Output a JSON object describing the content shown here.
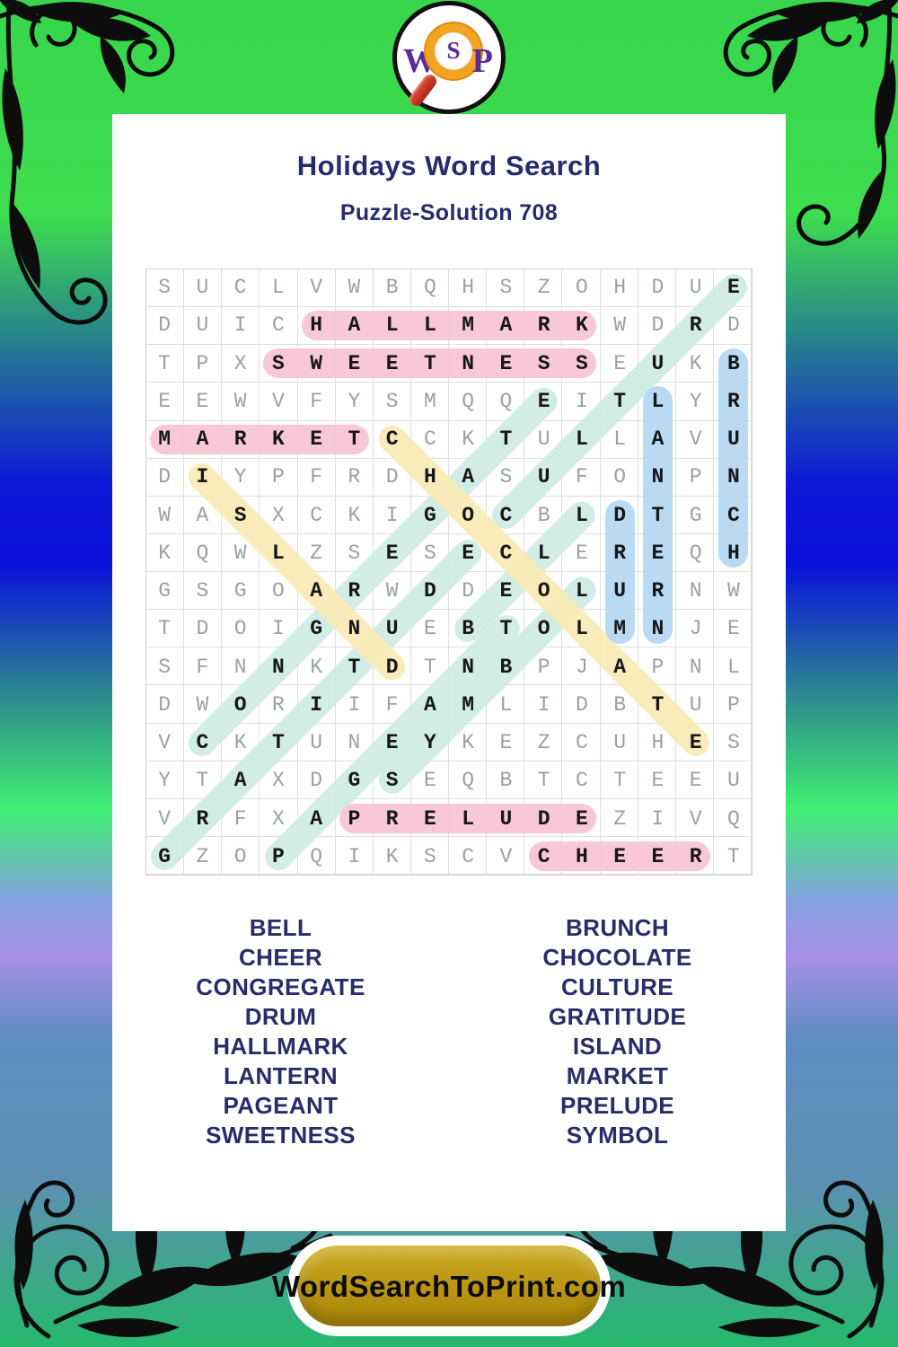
{
  "logo": {
    "left_letter": "W",
    "lens_letter": "S",
    "right_letter": "P"
  },
  "header": {
    "title": "Holidays Word Search",
    "subtitle": "Puzzle-Solution 708"
  },
  "grid": {
    "rows": [
      "SUCLVWBQHSZOHDUE",
      "DUICHALLMARKWDRD",
      "TPXSWEETNESSEUKB",
      "EEWVFYSMQQEITLYR",
      "MARKETCCKTULLAVU",
      "DIYPFRDHASUFONPN",
      "WASXCKIGOCBLDTGC",
      "KQWLZSESECLEREQH",
      "GSGOARWDDEOLURNW",
      "TDOIGNUEBTOLMNJE",
      "SFNNKTDTNBPJAPNL",
      "DWORIIFAMLIDBTUP",
      "VCKTUNEYKEZCUHES",
      "YTAXDGSEQBTCTEEU",
      "VRFXAPRELUDEZIVQ",
      "GZOPQIKSCVCHEERT"
    ]
  },
  "solutions": [
    {
      "word": "GRATITUDE",
      "row": 16,
      "col": 1,
      "dir": "NE",
      "color": "teal"
    },
    {
      "word": "CONGREGATE",
      "row": 13,
      "col": 2,
      "dir": "NE",
      "color": "teal"
    },
    {
      "word": "PAGEANT",
      "row": 16,
      "col": 4,
      "dir": "NE",
      "color": "teal"
    },
    {
      "word": "SYMBOL",
      "row": 14,
      "col": 7,
      "dir": "NE",
      "color": "teal"
    },
    {
      "word": "BELL",
      "row": 10,
      "col": 9,
      "dir": "NE",
      "color": "teal"
    },
    {
      "word": "CULTURE",
      "row": 7,
      "col": 10,
      "dir": "NE",
      "color": "teal"
    },
    {
      "word": "ISLAND",
      "row": 6,
      "col": 2,
      "dir": "SE",
      "color": "yellow"
    },
    {
      "word": "CHOCOLATE",
      "row": 5,
      "col": 7,
      "dir": "SE",
      "color": "yellow"
    },
    {
      "word": "BRUNCH",
      "row": 3,
      "col": 16,
      "dir": "S",
      "color": "blue"
    },
    {
      "word": "LANTERN",
      "row": 4,
      "col": 14,
      "dir": "S",
      "color": "blue"
    },
    {
      "word": "DRUM",
      "row": 7,
      "col": 13,
      "dir": "S",
      "color": "blue"
    },
    {
      "word": "HALLMARK",
      "row": 2,
      "col": 5,
      "dir": "E",
      "color": "pink"
    },
    {
      "word": "SWEETNESS",
      "row": 3,
      "col": 4,
      "dir": "E",
      "color": "pink"
    },
    {
      "word": "MARKET",
      "row": 5,
      "col": 1,
      "dir": "E",
      "color": "pink"
    },
    {
      "word": "PRELUDE",
      "row": 15,
      "col": 6,
      "dir": "E",
      "color": "pink"
    },
    {
      "word": "CHEER",
      "row": 16,
      "col": 11,
      "dir": "E",
      "color": "pink"
    }
  ],
  "highlight_colors": {
    "pink": "#f8c3d2",
    "yellow": "#fae9b5",
    "teal": "#cdebe3",
    "blue": "#b4d7f3"
  },
  "word_list": {
    "left": [
      "BELL",
      "CHEER",
      "CONGREGATE",
      "DRUM",
      "HALLMARK",
      "LANTERN",
      "PAGEANT",
      "SWEETNESS"
    ],
    "right": [
      "BRUNCH",
      "CHOCOLATE",
      "CULTURE",
      "GRATITUDE",
      "ISLAND",
      "MARKET",
      "PRELUDE",
      "SYMBOL"
    ]
  },
  "footer": {
    "site_label": "WordSearchToPrint.com"
  }
}
